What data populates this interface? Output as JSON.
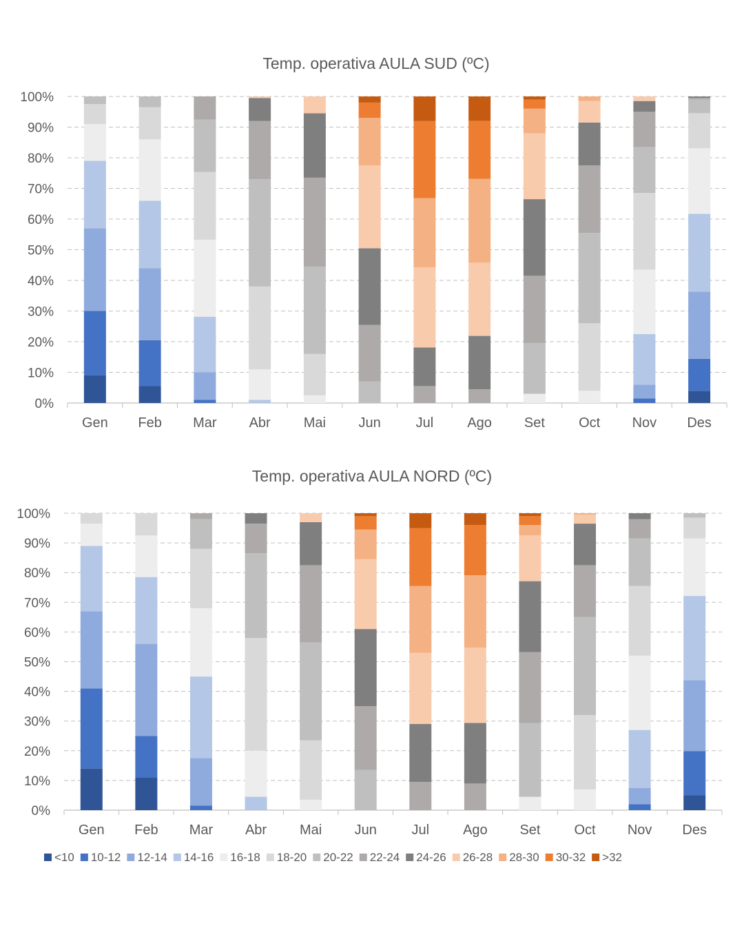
{
  "chart_data": [
    {
      "type": "bar",
      "stacked": "percent",
      "title": "Temp. operativa  AULA SUD (ºC)",
      "categories": [
        "Gen",
        "Feb",
        "Mar",
        "Abr",
        "Mai",
        "Jun",
        "Jul",
        "Ago",
        "Set",
        "Oct",
        "Nov",
        "Des"
      ],
      "yticks": [
        "0%",
        "10%",
        "20%",
        "30%",
        "40%",
        "50%",
        "60%",
        "70%",
        "80%",
        "90%",
        "100%"
      ],
      "ylim": [
        0,
        100
      ],
      "grid": "horizontal dashed",
      "series": [
        {
          "name": "<10",
          "values": [
            9,
            5.5,
            0,
            0,
            0,
            0,
            0,
            0,
            0,
            0,
            0,
            4
          ]
        },
        {
          "name": "10-12",
          "values": [
            21,
            15,
            1,
            0,
            0,
            0,
            0,
            0,
            0,
            0,
            1.5,
            10.5
          ]
        },
        {
          "name": "12-14",
          "values": [
            27,
            23.5,
            9,
            0,
            0,
            0,
            0,
            0,
            0,
            0,
            4.5,
            22
          ]
        },
        {
          "name": "14-16",
          "values": [
            22,
            22,
            18,
            1,
            0,
            0,
            0,
            0,
            0,
            0,
            16.5,
            25.5
          ]
        },
        {
          "name": "16-18",
          "values": [
            12,
            20,
            25,
            10,
            2.5,
            0,
            0,
            0,
            3,
            4,
            21,
            21.5
          ]
        },
        {
          "name": "18-20",
          "values": [
            6.5,
            10.5,
            22,
            27,
            13.5,
            0,
            0,
            0,
            0,
            22,
            25,
            11.5
          ]
        },
        {
          "name": "20-22",
          "values": [
            2.5,
            3.5,
            17,
            35,
            28.5,
            7,
            0,
            0,
            16.5,
            29.5,
            15,
            4.5
          ]
        },
        {
          "name": "22-24",
          "values": [
            0,
            0,
            7.5,
            19,
            29,
            18.5,
            5.5,
            4.5,
            22,
            22,
            11.5,
            0.5
          ]
        },
        {
          "name": "24-26",
          "values": [
            0,
            0,
            0,
            7.5,
            21,
            25,
            12.5,
            17.5,
            25,
            14,
            3.5,
            0.5
          ]
        },
        {
          "name": "26-28",
          "values": [
            0,
            0,
            0,
            0.5,
            5.5,
            27,
            26,
            24,
            21.5,
            7,
            1.5,
            0
          ]
        },
        {
          "name": "28-30",
          "values": [
            0,
            0,
            0,
            0,
            0,
            15.5,
            22.5,
            27.5,
            8,
            1.5,
            0,
            0
          ]
        },
        {
          "name": "30-32",
          "values": [
            0,
            0,
            0,
            0,
            0,
            5,
            25,
            19,
            3,
            0,
            0,
            0
          ]
        },
        {
          "name": ">32",
          "values": [
            0,
            0,
            0,
            0,
            0,
            2,
            8,
            8,
            1,
            0,
            0,
            0
          ]
        }
      ]
    },
    {
      "type": "bar",
      "stacked": "percent",
      "title": "Temp. operativa  AULA NORD (ºC)",
      "categories": [
        "Gen",
        "Feb",
        "Mar",
        "Abr",
        "Mai",
        "Jun",
        "Jul",
        "Ago",
        "Set",
        "Oct",
        "Nov",
        "Des"
      ],
      "yticks": [
        "0%",
        "10%",
        "20%",
        "30%",
        "40%",
        "50%",
        "60%",
        "70%",
        "80%",
        "90%",
        "100%"
      ],
      "ylim": [
        0,
        100
      ],
      "grid": "horizontal dashed",
      "series": [
        {
          "name": "<10",
          "values": [
            14,
            11,
            0,
            0,
            0,
            0,
            0,
            0,
            0,
            0,
            0,
            5
          ]
        },
        {
          "name": "10-12",
          "values": [
            27,
            14,
            1.5,
            0,
            0,
            0,
            0,
            0,
            0,
            0,
            2,
            15
          ]
        },
        {
          "name": "12-14",
          "values": [
            26,
            31,
            16,
            0,
            0,
            0,
            0,
            0,
            0,
            0,
            5.5,
            24
          ]
        },
        {
          "name": "14-16",
          "values": [
            22,
            22.5,
            27.5,
            4.5,
            0,
            0,
            0,
            0,
            0,
            0,
            19.5,
            28.5
          ]
        },
        {
          "name": "16-18",
          "values": [
            7.5,
            14,
            23,
            15.5,
            3.5,
            0,
            0,
            0,
            4.5,
            7,
            25,
            19.5
          ]
        },
        {
          "name": "18-20",
          "values": [
            3.5,
            7.5,
            20,
            38,
            20,
            0,
            0,
            0,
            0,
            25,
            23.5,
            7
          ]
        },
        {
          "name": "20-22",
          "values": [
            0,
            0,
            10,
            28.5,
            33,
            13.5,
            0,
            0,
            25,
            33,
            16,
            1.5
          ]
        },
        {
          "name": "22-24",
          "values": [
            0,
            0,
            2,
            10,
            26,
            21.5,
            9.5,
            9,
            24,
            17.5,
            6.5,
            0
          ]
        },
        {
          "name": "24-26",
          "values": [
            0,
            0,
            0,
            3.5,
            14.5,
            26,
            19.5,
            20.5,
            24,
            14,
            2,
            0
          ]
        },
        {
          "name": "26-28",
          "values": [
            0,
            0,
            0,
            0,
            3,
            23.5,
            24,
            25.5,
            15.5,
            3,
            0,
            0
          ]
        },
        {
          "name": "28-30",
          "values": [
            0,
            0,
            0,
            0,
            0,
            10,
            22.5,
            24.5,
            3.5,
            0.5,
            0,
            0
          ]
        },
        {
          "name": "30-32",
          "values": [
            0,
            0,
            0,
            0,
            0,
            4.5,
            19.5,
            17,
            3,
            0,
            0,
            0
          ]
        },
        {
          "name": ">32",
          "values": [
            0,
            0,
            0,
            0,
            0,
            1,
            5,
            4,
            1,
            0,
            0,
            0
          ]
        }
      ]
    }
  ],
  "colors": {
    "<10": "#2f5597",
    "10-12": "#4472c4",
    "12-14": "#8faadc",
    "14-16": "#b4c7e7",
    "16-18": "#ededed",
    "18-20": "#d9d9d9",
    "20-22": "#bfbfbf",
    "22-24": "#aeaaaa",
    "24-26": "#7f7f7f",
    "26-28": "#f8cbad",
    "28-30": "#f4b183",
    "30-32": "#ed7d31",
    ">32": "#c55a11"
  },
  "legend": [
    "<10",
    "10-12",
    "12-14",
    "14-16",
    "16-18",
    "18-20",
    "20-22",
    "22-24",
    "24-26",
    "26-28",
    "28-30",
    "30-32",
    ">32"
  ]
}
